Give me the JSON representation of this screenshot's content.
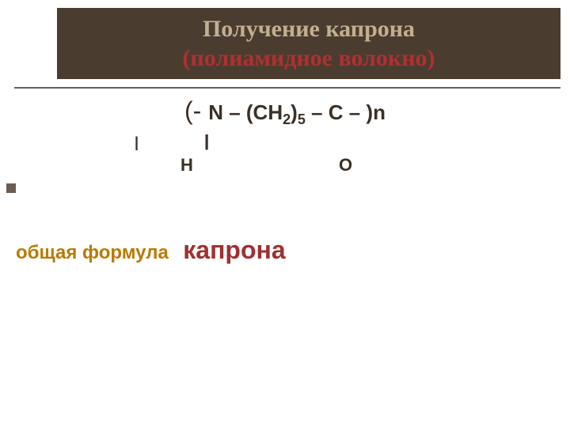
{
  "colors": {
    "header_bg": "#4b3c30",
    "title1": "#c0b090",
    "title2": "#b03030",
    "hr": "#666057",
    "body_text": "#3b3026",
    "bullet": "#6b5d4f",
    "caption_left": "#b97a00",
    "caption_right": "#a03030",
    "background": "#ffffff"
  },
  "typography": {
    "title_family": "Georgia",
    "title_size_pt": 30,
    "formula_family": "Arial",
    "formula_size_pt": 26,
    "sub_size_pt": 18,
    "under_size_pt": 22,
    "caption_left_size_pt": 24,
    "caption_right_size_pt": 32
  },
  "header": {
    "line1": "Получение капрона",
    "line2": "(полиамидное волокно)"
  },
  "formula": {
    "open": "(- ",
    "p1": "N – (CH",
    "s1": "2",
    "p2": ")",
    "s2": "5",
    "p3": " – C  – )n",
    "bond_single": "|",
    "bond_double": "||",
    "under_H": "Н",
    "under_O": "О"
  },
  "caption": {
    "left": "общая формула",
    "right": "капрона"
  }
}
